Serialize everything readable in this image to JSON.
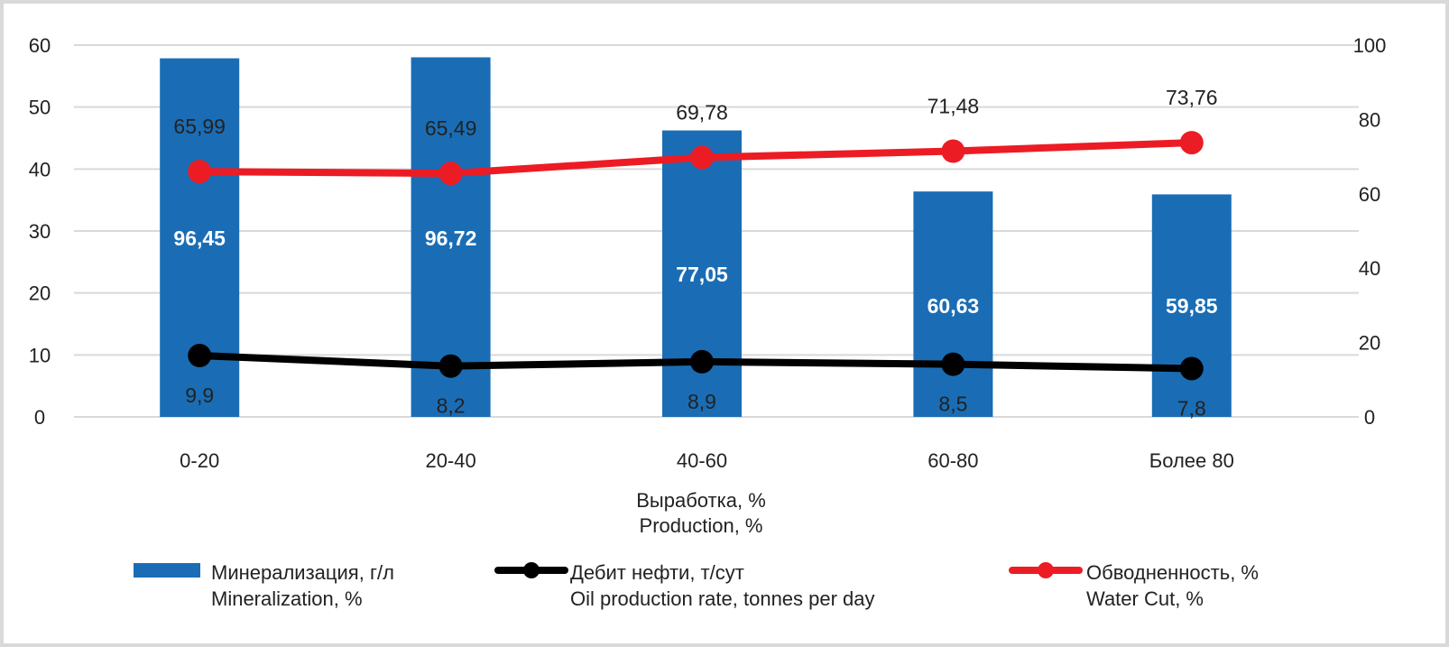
{
  "chart_data": {
    "type": "bar+line",
    "categories": [
      "0-20",
      "20-40",
      "40-60",
      "60-80",
      "Более 80"
    ],
    "xlabel": [
      "Выработка, %",
      "Production, %"
    ],
    "left_axis": {
      "ylim": [
        0,
        60
      ],
      "ticks": [
        0,
        10,
        20,
        30,
        40,
        50,
        60
      ]
    },
    "right_axis": {
      "ylim": [
        0,
        100
      ],
      "ticks": [
        0,
        20,
        40,
        60,
        80,
        100
      ]
    },
    "grid": true,
    "legend_position": "bottom",
    "series": [
      {
        "name": [
          "Минерализация,  г/л",
          "Mineralization,  %"
        ],
        "type": "bar",
        "axis": "right",
        "color": "#1a6db5",
        "values": [
          96.45,
          96.72,
          77.05,
          60.63,
          59.85
        ],
        "labels": [
          "96,45",
          "96,72",
          "77,05",
          "60,63",
          "59,85"
        ]
      },
      {
        "name": [
          "Дебит нефти, т/сут",
          "Oil production rate, tonnes per day"
        ],
        "type": "line",
        "axis": "left",
        "color": "#000000",
        "values": [
          9.9,
          8.2,
          8.9,
          8.5,
          7.8
        ],
        "labels": [
          "9,9",
          "8,2",
          "8,9",
          "8,5",
          "7,8"
        ]
      },
      {
        "name": [
          "Обводненность, %",
          "Water Cut, %"
        ],
        "type": "line",
        "axis": "right",
        "color": "#ec1c24",
        "values": [
          65.99,
          65.49,
          69.78,
          71.48,
          73.76
        ],
        "labels": [
          "65,99",
          "65,49",
          "69,78",
          "71,48",
          "73,76"
        ]
      }
    ]
  }
}
